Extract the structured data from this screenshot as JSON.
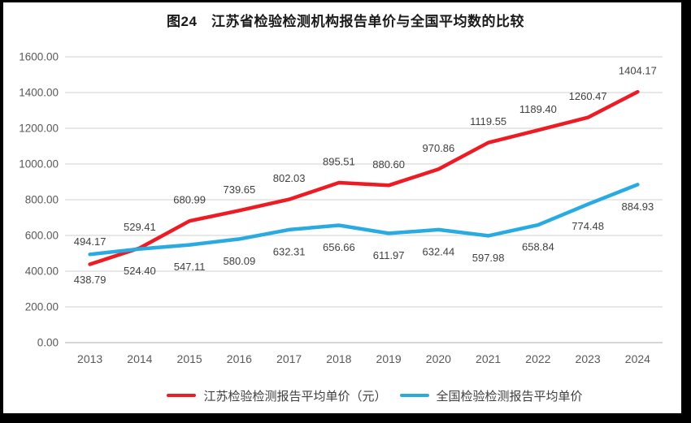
{
  "page": {
    "background": "#ffffff",
    "frame_color": "#000000"
  },
  "chart_data": {
    "type": "line",
    "title": "图24　江苏省检验检测机构报告单价与全国平均数的比较",
    "categories": [
      "2013",
      "2014",
      "2015",
      "2016",
      "2017",
      "2018",
      "2019",
      "2020",
      "2021",
      "2022",
      "2023",
      "2024"
    ],
    "series": [
      {
        "name": "江苏检验检测报告平均单价（元）",
        "color": "#ed1c24",
        "values": [
          438.79,
          529.41,
          680.99,
          739.65,
          802.03,
          895.51,
          880.6,
          970.86,
          1119.55,
          1189.4,
          1260.47,
          1404.17
        ],
        "label_position": "above"
      },
      {
        "name": "全国检验检测报告平均单价",
        "color": "#29abe2",
        "values": [
          494.17,
          524.4,
          547.11,
          580.09,
          632.31,
          656.66,
          611.97,
          632.44,
          597.98,
          658.84,
          774.48,
          884.93
        ],
        "label_position": "below"
      }
    ],
    "xlabel": "",
    "ylabel": "",
    "ylim": [
      0,
      1600
    ],
    "ytick_step": 200,
    "ytick_labels": [
      "0.00",
      "200.00",
      "400.00",
      "600.00",
      "800.00",
      "1000.00",
      "1200.00",
      "1400.00",
      "1600.00"
    ],
    "grid": true,
    "legend_position": "bottom",
    "colors": {
      "gridline": "#d9d9d9",
      "axis_line": "#bfbfbf",
      "tick_label": "#595959",
      "data_label": "#404040"
    }
  }
}
